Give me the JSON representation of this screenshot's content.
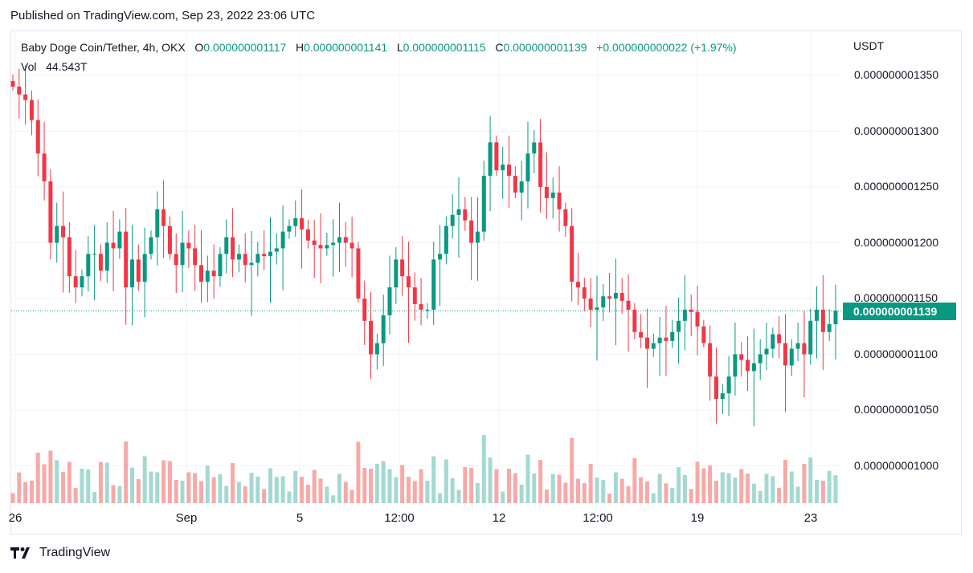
{
  "header": {
    "published": "Published on TradingView.com, Sep 23, 2022 23:06 UTC"
  },
  "legend": {
    "symbol": "Baby Doge Coin/Tether, 4h, OKX",
    "o_label": "O",
    "o_value": "0.000000001117",
    "h_label": "H",
    "h_value": "0.000000001141",
    "l_label": "L",
    "l_value": "0.000000001115",
    "c_label": "C",
    "c_value": "0.000000001139",
    "change": "+0.000000000022 (+1.97%)",
    "vol_label": "Vol",
    "vol_value": "44.543T"
  },
  "price_axis": {
    "unit": "USDT",
    "ticks": [
      "0.000000001350",
      "0.000000001300",
      "0.000000001250",
      "0.000000001200",
      "0.000000001150",
      "0.000000001100",
      "0.000000001050",
      "0.000000001000"
    ],
    "current_price": "0.000000001139"
  },
  "time_axis": {
    "ticks": [
      "26",
      "Sep",
      "5",
      "12:00",
      "12",
      "12:00",
      "19",
      "23"
    ]
  },
  "footer": {
    "brand": "TradingView"
  },
  "colors": {
    "up": "#089981",
    "down": "#f23645",
    "vol_up": "#a3d9d1",
    "grid": "#f0f3fa"
  },
  "chart_data": {
    "type": "candlestick",
    "symbol": "Baby Doge Coin/Tether",
    "interval": "4h",
    "exchange": "OKX",
    "ylim": [
      9.6e-10,
      1.37e-09
    ],
    "yticks": [
      1.35e-09,
      1.3e-09,
      1.25e-09,
      1.2e-09,
      1.15e-09,
      1.1e-09,
      1.05e-09,
      1e-09
    ],
    "current": 1.139e-09,
    "closes": [
      1.34,
      1.333,
      1.328,
      1.31,
      1.28,
      1.255,
      1.2,
      1.215,
      1.205,
      1.17,
      1.16,
      1.17,
      1.19,
      1.19,
      1.175,
      1.2,
      1.195,
      1.21,
      1.16,
      1.185,
      1.165,
      1.19,
      1.205,
      1.23,
      1.215,
      1.19,
      1.18,
      1.2,
      1.195,
      1.18,
      1.165,
      1.175,
      1.17,
      1.19,
      1.205,
      1.185,
      1.19,
      1.18,
      1.182,
      1.19,
      1.188,
      1.192,
      1.195,
      1.21,
      1.215,
      1.222,
      1.212,
      1.202,
      1.198,
      1.195,
      1.198,
      1.2,
      1.205,
      1.2,
      1.195,
      1.15,
      1.13,
      1.1,
      1.11,
      1.135,
      1.16,
      1.185,
      1.17,
      1.16,
      1.145,
      1.14,
      1.14,
      1.185,
      1.19,
      1.215,
      1.225,
      1.23,
      1.22,
      1.2,
      1.21,
      1.26,
      1.29,
      1.265,
      1.27,
      1.26,
      1.245,
      1.255,
      1.28,
      1.29,
      1.25,
      1.24,
      1.245,
      1.23,
      1.215,
      1.165,
      1.16,
      1.15,
      1.14,
      1.142,
      1.152,
      1.15,
      1.155,
      1.148,
      1.14,
      1.12,
      1.115,
      1.105,
      1.11,
      1.115,
      1.112,
      1.12,
      1.13,
      1.14,
      1.138,
      1.125,
      1.11,
      1.08,
      1.06,
      1.065,
      1.08,
      1.1,
      1.095,
      1.085,
      1.092,
      1.1,
      1.105,
      1.118,
      1.11,
      1.09,
      1.105,
      1.11,
      1.1,
      1.13,
      1.14,
      1.12,
      1.127,
      1.139
    ]
  }
}
